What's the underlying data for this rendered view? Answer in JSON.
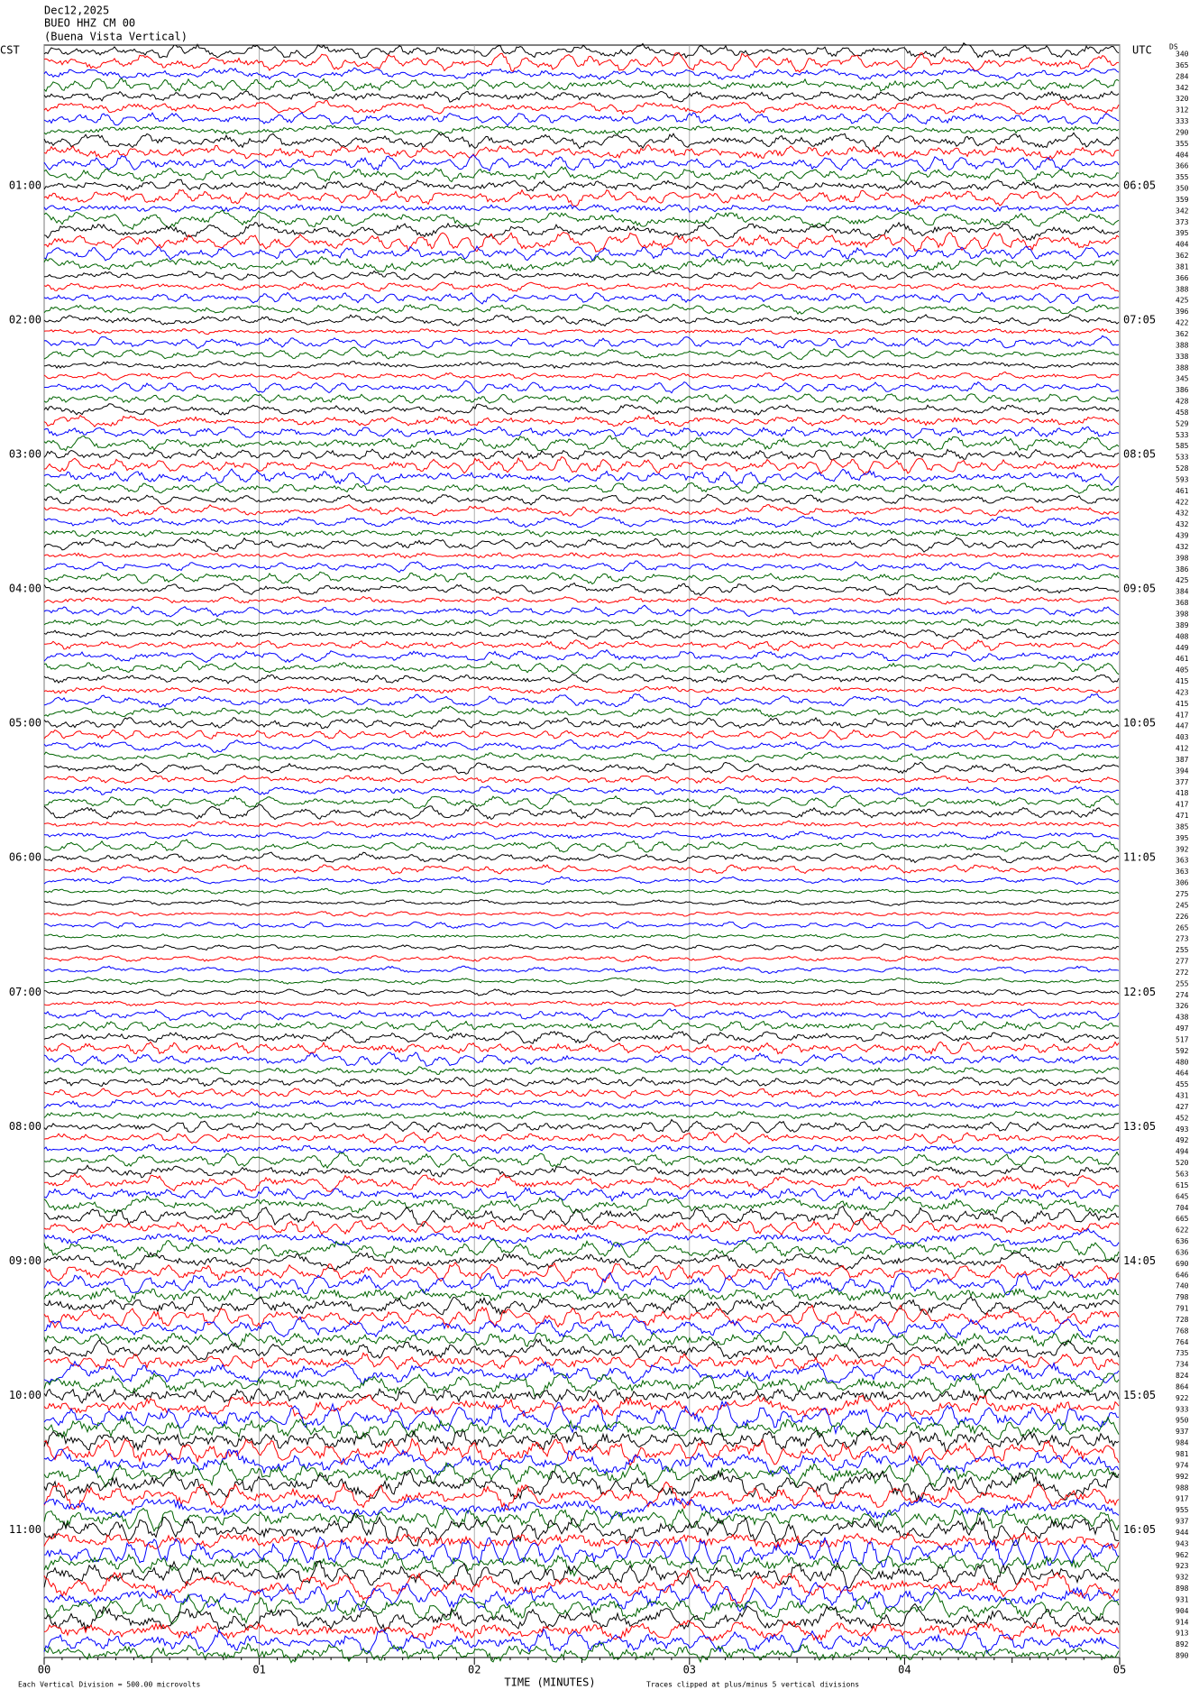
{
  "header": {
    "date": "Dec12,2025",
    "station": "BUEO HHZ CM 00",
    "location": "(Buena Vista Vertical)"
  },
  "axis": {
    "left_label": "CST",
    "right_label": "UTC",
    "ds_label": "DS",
    "left_times": [
      "01:00",
      "02:00",
      "03:00",
      "04:00",
      "05:00",
      "06:00",
      "07:00",
      "08:00",
      "09:00",
      "10:00",
      "11:00"
    ],
    "right_times": [
      "06:05",
      "07:05",
      "08:05",
      "09:05",
      "10:05",
      "11:05",
      "12:05",
      "13:05",
      "14:05",
      "15:05",
      "16:05"
    ],
    "x_ticks": [
      "00",
      "01",
      "02",
      "03",
      "04",
      "05"
    ],
    "x_title": "TIME (MINUTES)",
    "note_left": "Each Vertical Division =  500.00 microvolts",
    "note_right": "Traces clipped at plus/minus 5 vertical divisions"
  },
  "traces": {
    "colors": [
      "#000000",
      "#ff0000",
      "#0000ff",
      "#006400"
    ],
    "ds_values": [
      340,
      365,
      284,
      342,
      320,
      312,
      333,
      290,
      355,
      404,
      366,
      355,
      350,
      359,
      342,
      373,
      395,
      404,
      362,
      381,
      366,
      388,
      425,
      396,
      422,
      362,
      388,
      338,
      388,
      345,
      386,
      428,
      458,
      529,
      533,
      585,
      533,
      528,
      593,
      461,
      422,
      432,
      432,
      439,
      432,
      398,
      386,
      425,
      384,
      368,
      398,
      389,
      408,
      449,
      461,
      405,
      415,
      423,
      415,
      417,
      447,
      403,
      412,
      387,
      394,
      377,
      418,
      417,
      471,
      385,
      395,
      392,
      363,
      363,
      306,
      275,
      245,
      226,
      265,
      273,
      255,
      277,
      272,
      255,
      274,
      326,
      438,
      497,
      517,
      592,
      480,
      464,
      455,
      431,
      427,
      452,
      493,
      492,
      494,
      520,
      563,
      615,
      645,
      704,
      665,
      622,
      636,
      636,
      690,
      646,
      740,
      798,
      791,
      728,
      768,
      764,
      735,
      734,
      824,
      864,
      922,
      933,
      950,
      937,
      984,
      981,
      974,
      992,
      988,
      917,
      955,
      937,
      944,
      943,
      962,
      923,
      932,
      898,
      931,
      904,
      914,
      913,
      892,
      890
    ]
  }
}
